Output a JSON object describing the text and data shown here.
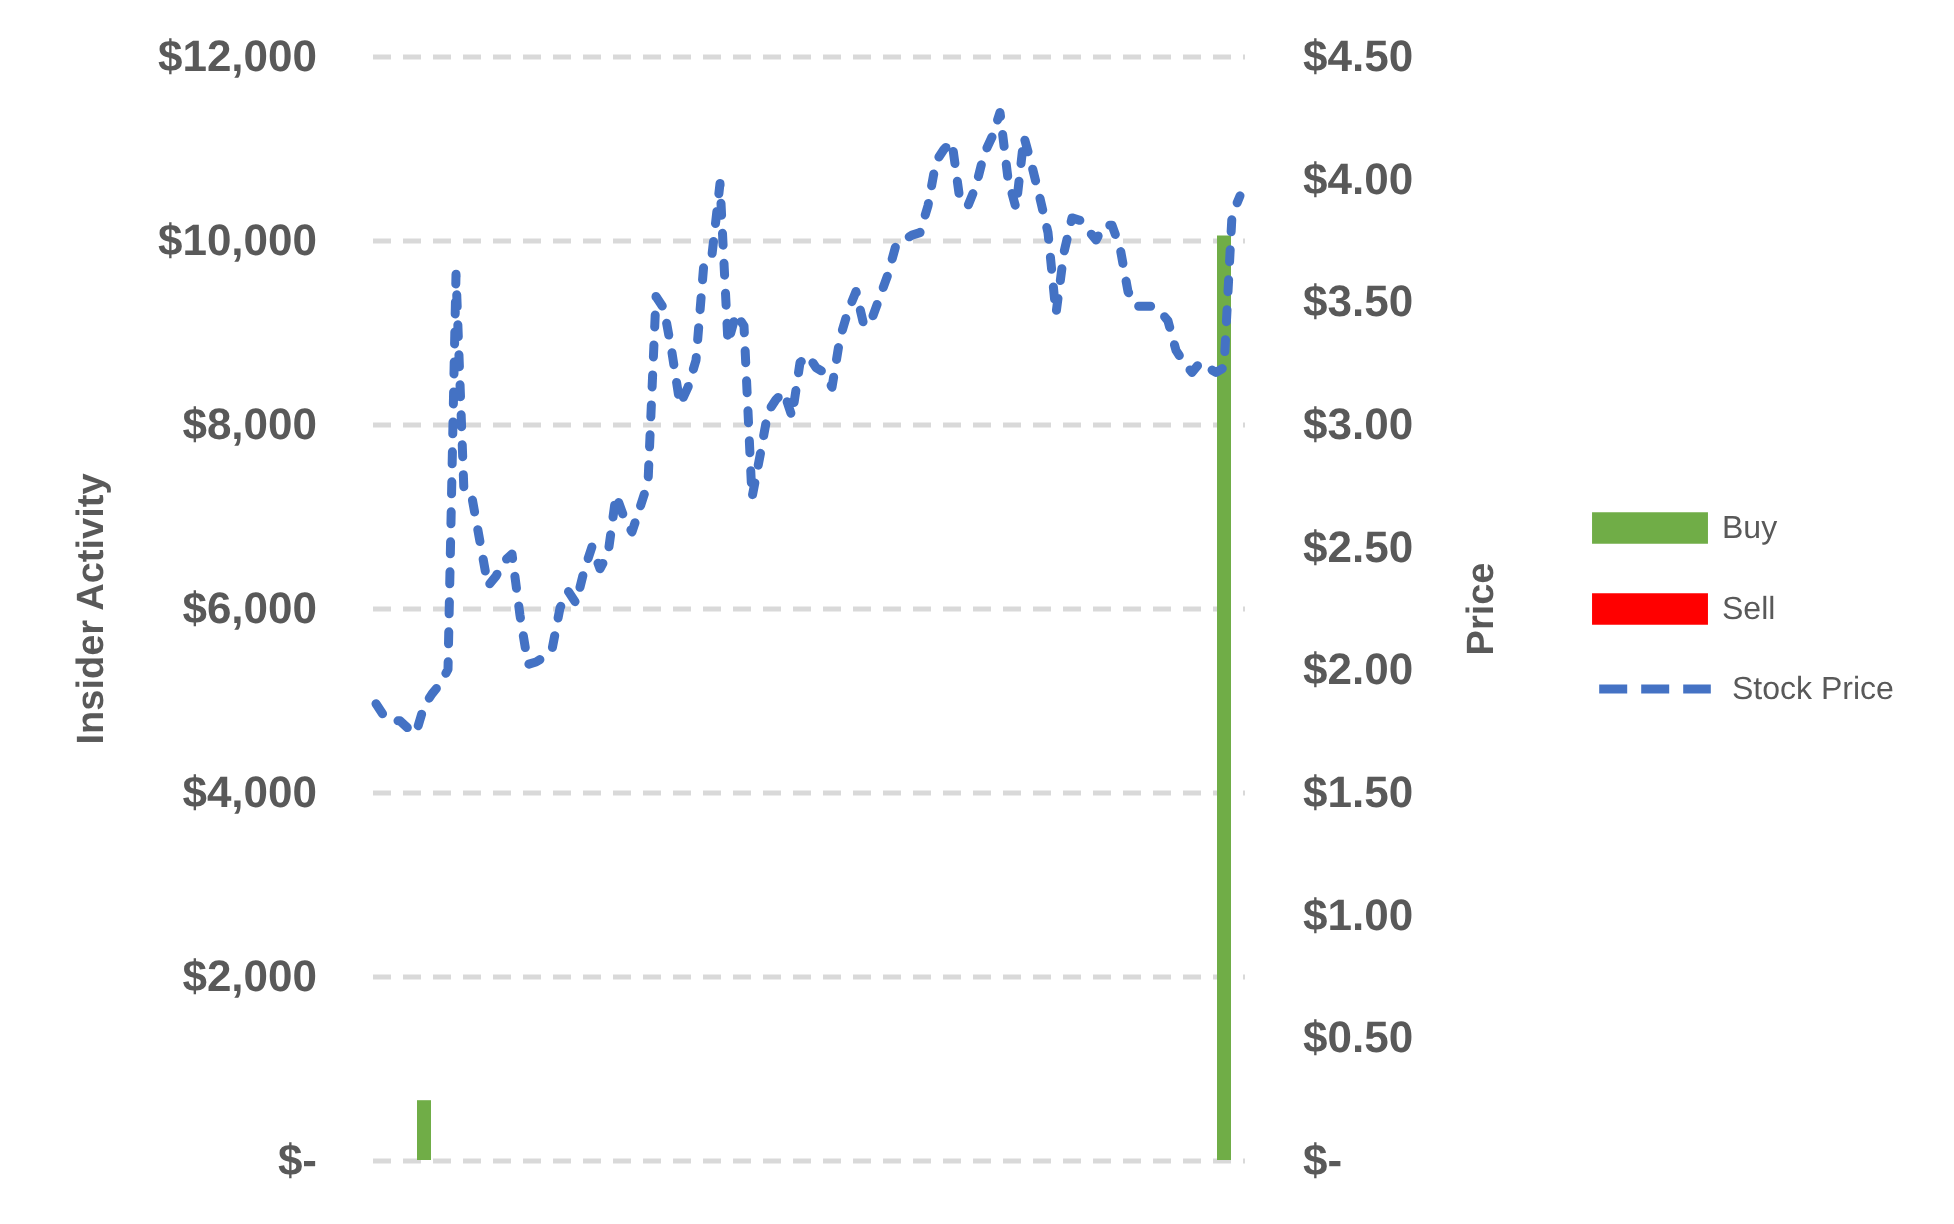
{
  "chart_data": {
    "type": "bar",
    "ylabel": "Insider Activity",
    "y2label": "Price",
    "categories": [
      null,
      null,
      null,
      null,
      null,
      null,
      null,
      null,
      null,
      null,
      null,
      null,
      null,
      null,
      null,
      null,
      null,
      null,
      null,
      null,
      null,
      null,
      null,
      null,
      null,
      null,
      null,
      null,
      null,
      null,
      null,
      null,
      null,
      null,
      null,
      null,
      null,
      null,
      null,
      null,
      null,
      null,
      null,
      null,
      null,
      null,
      null,
      null,
      null,
      null,
      null,
      null,
      null,
      null,
      null,
      null,
      null,
      null,
      null,
      null,
      null,
      null,
      null,
      null,
      null,
      null,
      null,
      null,
      null,
      null,
      null,
      null,
      null,
      null,
      null,
      null,
      null,
      null,
      null,
      null,
      null,
      null,
      null,
      null,
      null,
      null,
      null,
      null,
      null,
      null,
      null,
      null,
      null,
      null,
      null,
      null,
      null,
      null,
      null,
      null,
      null,
      null,
      null,
      null,
      null,
      null,
      null,
      null,
      null
    ],
    "series": [
      {
        "name": "Buy",
        "color": "#70ad47",
        "values": [
          null,
          null,
          null,
          null,
          null,
          null,
          650,
          null,
          null,
          null,
          null,
          null,
          null,
          null,
          null,
          null,
          null,
          null,
          null,
          null,
          null,
          null,
          null,
          null,
          null,
          null,
          null,
          null,
          null,
          null,
          null,
          null,
          null,
          null,
          null,
          null,
          null,
          null,
          null,
          null,
          null,
          null,
          null,
          null,
          null,
          null,
          null,
          null,
          null,
          null,
          null,
          null,
          null,
          null,
          null,
          null,
          null,
          null,
          null,
          null,
          null,
          null,
          null,
          null,
          null,
          null,
          null,
          null,
          null,
          null,
          null,
          null,
          null,
          null,
          null,
          null,
          null,
          null,
          null,
          null,
          null,
          null,
          null,
          null,
          null,
          null,
          null,
          null,
          null,
          null,
          null,
          null,
          null,
          null,
          null,
          null,
          null,
          null,
          null,
          null,
          null,
          null,
          null,
          null,
          null,
          null,
          10050,
          null,
          null
        ]
      },
      {
        "name": "Sell",
        "color": "#ff0000",
        "values": [
          null,
          null,
          null,
          null,
          null,
          null,
          null,
          null,
          null,
          null,
          null,
          null,
          null,
          null,
          null,
          null,
          null,
          null,
          null,
          null,
          null,
          null,
          null,
          null,
          null,
          null,
          null,
          null,
          null,
          null,
          null,
          null,
          null,
          null,
          null,
          null,
          null,
          null,
          null,
          null,
          null,
          null,
          null,
          null,
          null,
          null,
          null,
          null,
          null,
          null,
          null,
          null,
          null,
          null,
          null,
          null,
          null,
          null,
          null,
          null,
          null,
          null,
          null,
          null,
          null,
          null,
          null,
          null,
          null,
          null,
          null,
          null,
          null,
          null,
          null,
          null,
          null,
          null,
          null,
          null,
          null,
          null,
          null,
          null,
          null,
          null,
          null,
          null,
          null,
          null,
          null,
          null,
          null,
          null,
          null,
          null,
          null,
          null,
          null,
          null,
          null,
          null,
          null,
          null,
          null,
          null,
          null,
          null,
          null
        ]
      },
      {
        "name": "Stock Price",
        "type": "line",
        "axis": "y2",
        "color": "#4472c4",
        "line_style": "dashed",
        "marker": "none",
        "values": [
          1.86,
          1.81,
          1.79,
          1.79,
          1.76,
          1.74,
          1.85,
          1.9,
          1.94,
          2.0,
          3.61,
          2.72,
          2.7,
          2.52,
          2.34,
          2.38,
          2.44,
          2.47,
          2.22,
          2.02,
          2.03,
          2.05,
          2.08,
          2.25,
          2.32,
          2.27,
          2.4,
          2.5,
          2.41,
          2.47,
          2.71,
          2.62,
          2.56,
          2.66,
          2.76,
          3.52,
          3.47,
          3.29,
          3.08,
          3.15,
          3.26,
          3.66,
          3.69,
          3.98,
          3.33,
          3.45,
          3.4,
          2.7,
          2.87,
          3.05,
          3.1,
          3.13,
          3.03,
          3.25,
          3.28,
          3.23,
          3.21,
          3.15,
          3.35,
          3.46,
          3.54,
          3.4,
          3.43,
          3.52,
          3.61,
          3.73,
          3.75,
          3.77,
          3.78,
          3.89,
          4.07,
          4.12,
          4.15,
          3.91,
          3.89,
          3.97,
          4.1,
          4.17,
          4.27,
          4.0,
          3.88,
          4.17,
          4.05,
          3.92,
          3.78,
          3.45,
          3.7,
          3.84,
          3.83,
          3.79,
          3.75,
          3.81,
          3.81,
          3.72,
          3.54,
          3.48,
          3.48,
          3.48,
          3.46,
          3.42,
          3.3,
          3.25,
          3.21,
          3.25,
          3.23,
          3.21,
          3.23,
          3.85,
          3.93
        ]
      }
    ],
    "ylim": [
      0,
      12000
    ],
    "yticks": [
      {
        "value": 0,
        "label": "$-"
      },
      {
        "value": 2000,
        "label": "$2,000"
      },
      {
        "value": 4000,
        "label": "$4,000"
      },
      {
        "value": 6000,
        "label": "$6,000"
      },
      {
        "value": 8000,
        "label": "$8,000"
      },
      {
        "value": 10000,
        "label": "$10,000"
      },
      {
        "value": 12000,
        "label": "$12,000"
      }
    ],
    "y2lim": [
      0,
      4.5
    ],
    "y2ticks": [
      {
        "value": 0,
        "label": "$-"
      },
      {
        "value": 0.5,
        "label": "$0.50"
      },
      {
        "value": 1,
        "label": "$1.00"
      },
      {
        "value": 1.5,
        "label": "$1.50"
      },
      {
        "value": 2,
        "label": "$2.00"
      },
      {
        "value": 2.5,
        "label": "$2.50"
      },
      {
        "value": 3,
        "label": "$3.00"
      },
      {
        "value": 3.5,
        "label": "$3.50"
      },
      {
        "value": 4,
        "label": "$4.00"
      },
      {
        "value": 4.5,
        "label": "$4.50"
      }
    ],
    "grid": "y",
    "legend": "right"
  }
}
